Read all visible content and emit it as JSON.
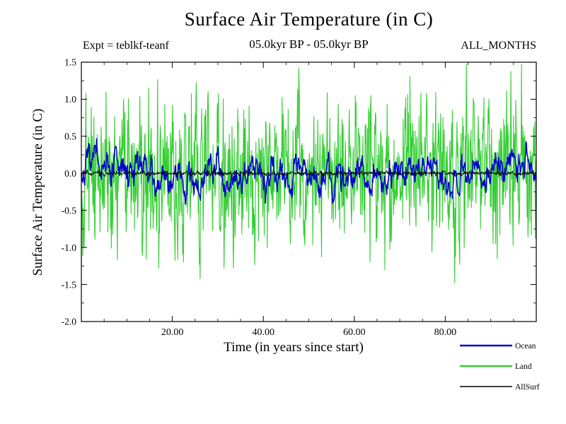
{
  "header": {
    "title": "Surface Air Temperature (in C)",
    "experiment": "Expt = teblkf-teanf",
    "period": "05.0kyr BP - 05.0kyr BP",
    "months_label": "ALL_MONTHS"
  },
  "chart_data": {
    "type": "line",
    "title": "Surface Air Temperature (in C)",
    "xlabel": "Time (in years since start)",
    "ylabel": "Surface Air Temperature (in C)",
    "xlim": [
      0,
      100
    ],
    "ylim": [
      -2.0,
      1.5
    ],
    "xticks": [
      20,
      40,
      60,
      80
    ],
    "xtick_labels": [
      "20.00",
      "40.00",
      "60.00",
      "80.00"
    ],
    "yticks": [
      1.5,
      1.0,
      0.5,
      0.0,
      -0.5,
      -1.0,
      -1.5,
      -2.0
    ],
    "ytick_labels": [
      "1.5",
      "1.0",
      "0.5",
      "0.0",
      "-0.5",
      "-1.0",
      "-1.5",
      "-2.0"
    ],
    "grid": false,
    "zero_line": {
      "value": 0.0,
      "style": "dashed",
      "color": "#000000"
    },
    "legend_position": "bottom-right",
    "samples_per_year": 12,
    "series": [
      {
        "name": "Land",
        "color": "#32CD32",
        "mean": 0.02,
        "std": 0.5,
        "smoothness": 0.35,
        "seed": 13,
        "line_width": 1.1,
        "z": 1
      },
      {
        "name": "Ocean",
        "color": "#0000CC",
        "mean": 0.0,
        "std": 0.15,
        "smoothness": 0.88,
        "seed": 7,
        "line_width": 1.5,
        "z": 2
      },
      {
        "name": "AllSurf",
        "color": "#000000",
        "mean": 0.0,
        "std": 0.015,
        "smoothness": 0.5,
        "seed": 3,
        "line_width": 0.9,
        "z": 3
      }
    ],
    "legend": [
      {
        "label": "Ocean",
        "color": "#0000CC"
      },
      {
        "label": "Land",
        "color": "#32CD32"
      },
      {
        "label": "AllSurf",
        "color": "#000000"
      }
    ]
  }
}
